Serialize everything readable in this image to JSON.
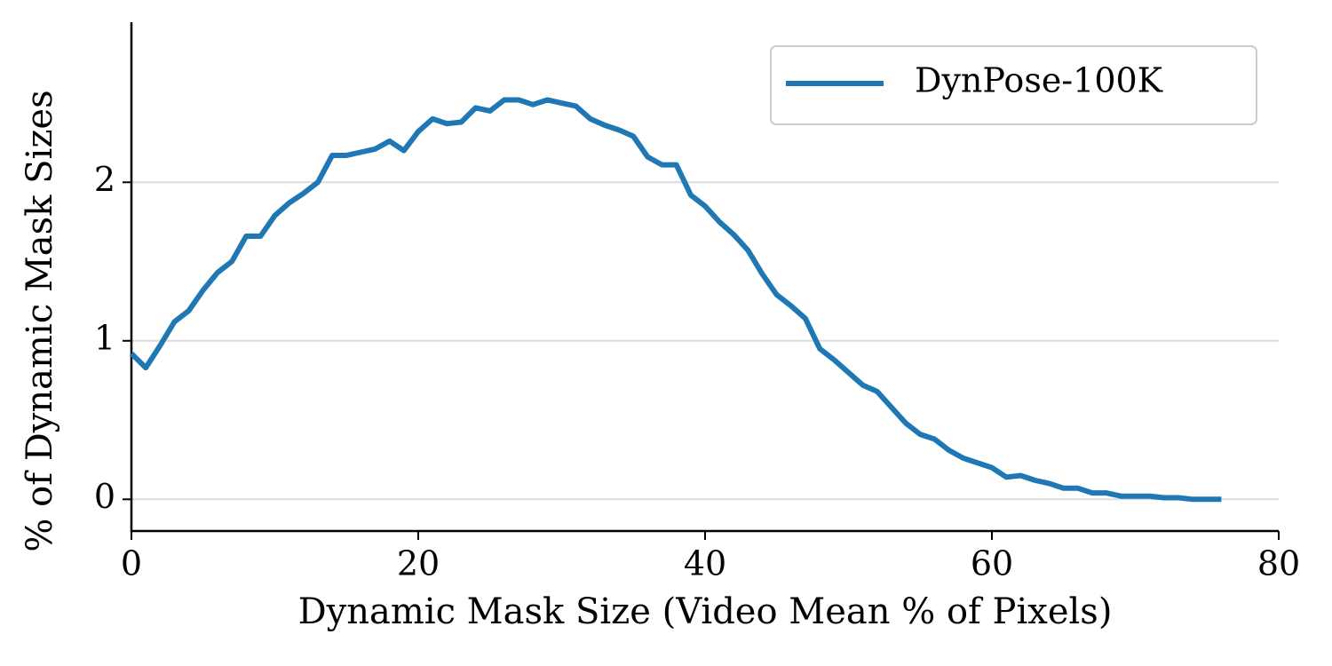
{
  "chart_data": {
    "type": "line",
    "xlabel": "Dynamic Mask Size (Video Mean % of Pixels)",
    "ylabel": "% of Dynamic Mask Sizes",
    "x": [
      0,
      1,
      2,
      3,
      4,
      5,
      6,
      7,
      8,
      9,
      10,
      11,
      12,
      13,
      14,
      15,
      16,
      17,
      18,
      19,
      20,
      21,
      22,
      23,
      24,
      25,
      26,
      27,
      28,
      29,
      30,
      31,
      32,
      33,
      34,
      35,
      36,
      37,
      38,
      39,
      40,
      41,
      42,
      43,
      44,
      45,
      46,
      47,
      48,
      49,
      50,
      51,
      52,
      53,
      54,
      55,
      56,
      57,
      58,
      59,
      60,
      61,
      62,
      63,
      64,
      65,
      66,
      67,
      68,
      69,
      70,
      71,
      72,
      73,
      74,
      75,
      76
    ],
    "series": [
      {
        "name": "DynPose-100K",
        "color": "#1f77b4",
        "values": [
          0.92,
          0.83,
          0.97,
          1.12,
          1.19,
          1.32,
          1.43,
          1.5,
          1.66,
          1.66,
          1.79,
          1.87,
          1.93,
          2.0,
          2.17,
          2.17,
          2.19,
          2.21,
          2.26,
          2.2,
          2.32,
          2.4,
          2.37,
          2.38,
          2.47,
          2.45,
          2.52,
          2.52,
          2.49,
          2.52,
          2.5,
          2.48,
          2.4,
          2.36,
          2.33,
          2.29,
          2.16,
          2.11,
          2.11,
          1.92,
          1.85,
          1.75,
          1.67,
          1.57,
          1.42,
          1.29,
          1.22,
          1.14,
          0.95,
          0.88,
          0.8,
          0.72,
          0.68,
          0.58,
          0.48,
          0.41,
          0.38,
          0.31,
          0.26,
          0.23,
          0.2,
          0.14,
          0.15,
          0.12,
          0.1,
          0.07,
          0.07,
          0.04,
          0.04,
          0.02,
          0.02,
          0.02,
          0.01,
          0.01,
          0.0,
          0.0,
          0.0
        ]
      }
    ],
    "xlim": [
      0,
      80
    ],
    "xticks": [
      0,
      20,
      40,
      60,
      80
    ],
    "ylim": [
      -0.2,
      3.01
    ],
    "yticks": [
      0,
      1,
      2
    ],
    "grid": true,
    "legend": "upper right"
  }
}
